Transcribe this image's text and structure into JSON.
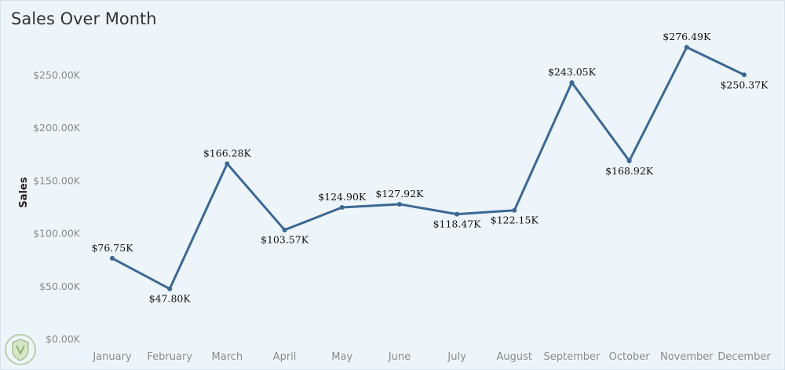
{
  "title": "Sales Over Month",
  "colors": {
    "line": "#3b6894",
    "background": "#eef5fa",
    "axis_text": "#8a8a8a",
    "label_text": "#111111"
  },
  "chart_data": {
    "type": "line",
    "title": "Sales Over Month",
    "xlabel": "",
    "ylabel": "Sales",
    "categories": [
      "January",
      "February",
      "March",
      "April",
      "May",
      "June",
      "July",
      "August",
      "September",
      "October",
      "November",
      "December"
    ],
    "values": [
      76750,
      47800,
      166280,
      103570,
      124900,
      127920,
      118470,
      122150,
      243050,
      168920,
      276490,
      250370
    ],
    "data_labels": [
      "$76.75K",
      "$47.80K",
      "$166.28K",
      "$103.57K",
      "$124.90K",
      "$127.92K",
      "$118.47K",
      "$122.15K",
      "$243.05K",
      "$168.92K",
      "$276.49K",
      "$250.37K"
    ],
    "label_position": [
      "above",
      "below",
      "above",
      "below",
      "above",
      "above",
      "below",
      "below",
      "above",
      "below",
      "above",
      "below"
    ],
    "yticks": [
      0,
      50000,
      100000,
      150000,
      200000,
      250000
    ],
    "ytick_labels": [
      "$0.00K",
      "$50.00K",
      "$100.00K",
      "$150.00K",
      "$200.00K",
      "$250.00K"
    ],
    "ylim": [
      0,
      295000
    ],
    "grid": false,
    "legend": "none"
  }
}
